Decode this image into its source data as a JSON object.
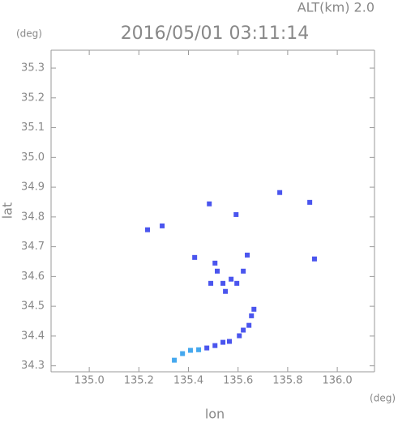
{
  "chart_data": {
    "type": "scatter",
    "title": "2016/05/01 03:11:14",
    "subtitle": "ALT(km) 2.0",
    "x_label": "lon",
    "x_unit": "(deg)",
    "y_label": "lat",
    "y_unit": "(deg)",
    "xlim": [
      134.846,
      136.15
    ],
    "ylim": [
      34.28,
      35.36
    ],
    "xticks": [
      {
        "value": 135,
        "label": "135.0"
      },
      135.2,
      135.4,
      135.6,
      135.8,
      {
        "value": 136,
        "label": "136.0"
      }
    ],
    "yticks": [
      34.3,
      34.4,
      34.5,
      34.6,
      34.7,
      34.8,
      34.9,
      {
        "value": 35,
        "label": "35.0"
      },
      35.1,
      35.2,
      35.3
    ],
    "series": [
      {
        "color": "#4a55ee",
        "x": [
          135.235,
          135.294,
          135.474,
          135.507,
          135.539,
          135.565,
          135.605,
          135.621,
          135.644,
          135.654,
          135.664,
          135.425,
          135.507,
          135.516,
          135.539,
          135.549,
          135.572,
          135.595,
          135.637,
          135.621,
          135.49,
          135.768,
          135.889,
          135.908,
          135.484,
          135.592
        ],
        "y": [
          34.757,
          34.77,
          34.36,
          34.368,
          34.379,
          34.382,
          34.401,
          34.42,
          34.436,
          34.468,
          34.49,
          34.664,
          34.645,
          34.618,
          34.577,
          34.55,
          34.591,
          34.577,
          34.672,
          34.618,
          34.577,
          34.882,
          34.849,
          34.659,
          34.844,
          34.808
        ]
      },
      {
        "color": "#45a8ee",
        "x": [
          135.343,
          135.376,
          135.408,
          135.441
        ],
        "y": [
          34.319,
          34.341,
          34.352,
          34.354
        ]
      }
    ]
  }
}
